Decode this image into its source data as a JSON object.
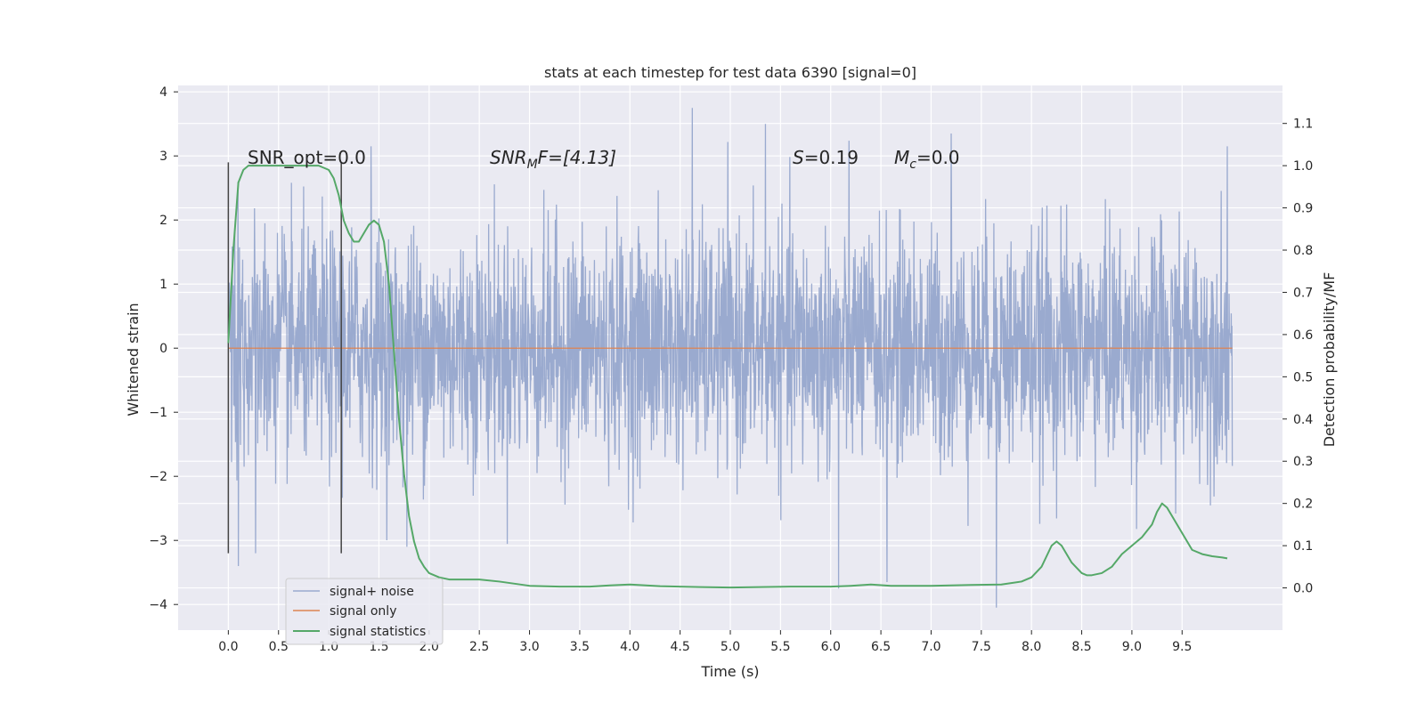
{
  "chart_data": {
    "type": "line",
    "title": "stats at each timestep for test data 6390 [signal=0]",
    "xlabel": "Time (s)",
    "ylabel": "Whitened strain",
    "y2label": "Detection probability/MF",
    "xlim": [
      -0.5,
      10.5
    ],
    "ylim": [
      -4.4,
      4.1
    ],
    "y2lim": [
      -0.1,
      1.19
    ],
    "x_ticks": [
      "0.0",
      "0.5",
      "1.0",
      "1.5",
      "2.0",
      "2.5",
      "3.0",
      "3.5",
      "4.0",
      "4.5",
      "5.0",
      "5.5",
      "6.0",
      "6.5",
      "7.0",
      "7.5",
      "8.0",
      "8.5",
      "9.0",
      "9.5"
    ],
    "y_ticks": [
      "4",
      "3",
      "2",
      "1",
      "0",
      "−1",
      "−2",
      "−3",
      "−4"
    ],
    "y2_ticks": [
      "1.1",
      "1.0",
      "0.9",
      "0.8",
      "0.7",
      "0.6",
      "0.5",
      "0.4",
      "0.3",
      "0.2",
      "0.1",
      "0.0"
    ],
    "grid": true,
    "legend_position": "lower-left",
    "annotations": {
      "snr_opt": "SNR_opt=0.0",
      "snr_mf_main": "SNR",
      "snr_mf_sub": "M",
      "snr_mf_rest": "F=[4.13]",
      "s_main": "S",
      "s_rest": "=0.19",
      "mc_main": "M",
      "mc_sub": "c",
      "mc_rest": "=0.0"
    },
    "vertical_markers": [
      0.0,
      1.125
    ],
    "series": [
      {
        "name": "signal+ noise",
        "color": "#9aaacf",
        "x_range": [
          0.0,
          10.0
        ],
        "envelope_typical": [
          -1.4,
          1.4
        ],
        "peaks": [
          {
            "x": 0.1,
            "y": -3.4
          },
          {
            "x": 0.27,
            "y": -3.2
          },
          {
            "x": 1.42,
            "y": 3.15
          },
          {
            "x": 1.78,
            "y": -3.1
          },
          {
            "x": 4.62,
            "y": 3.75
          },
          {
            "x": 5.35,
            "y": 3.5
          },
          {
            "x": 6.08,
            "y": -3.75
          },
          {
            "x": 6.56,
            "y": -3.65
          },
          {
            "x": 7.2,
            "y": 3.35
          },
          {
            "x": 7.65,
            "y": -4.05
          },
          {
            "x": 9.95,
            "y": 3.15
          }
        ]
      },
      {
        "name": "signal only",
        "color": "#dd8452",
        "x": [
          0.0,
          10.0
        ],
        "y": [
          0.0,
          0.0
        ]
      },
      {
        "name": "signal statistics",
        "color": "#55a868",
        "x": [
          0.0,
          0.05,
          0.1,
          0.15,
          0.2,
          0.3,
          0.5,
          0.7,
          0.9,
          1.0,
          1.05,
          1.1,
          1.15,
          1.2,
          1.25,
          1.3,
          1.35,
          1.4,
          1.45,
          1.5,
          1.55,
          1.6,
          1.65,
          1.7,
          1.75,
          1.8,
          1.85,
          1.9,
          1.95,
          2.0,
          2.1,
          2.2,
          2.3,
          2.5,
          2.7,
          3.0,
          3.3,
          3.6,
          3.8,
          4.0,
          4.3,
          4.7,
          5.0,
          5.3,
          5.6,
          6.0,
          6.2,
          6.4,
          6.6,
          7.0,
          7.4,
          7.7,
          7.9,
          8.0,
          8.1,
          8.2,
          8.25,
          8.3,
          8.4,
          8.5,
          8.55,
          8.6,
          8.7,
          8.8,
          8.9,
          9.0,
          9.1,
          9.2,
          9.25,
          9.3,
          9.35,
          9.4,
          9.5,
          9.6,
          9.7,
          9.8,
          9.9,
          9.95
        ],
        "y": [
          0.58,
          0.8,
          0.96,
          0.99,
          1.0,
          1.0,
          1.0,
          1.0,
          1.0,
          0.99,
          0.97,
          0.93,
          0.87,
          0.84,
          0.82,
          0.82,
          0.84,
          0.86,
          0.87,
          0.86,
          0.82,
          0.72,
          0.56,
          0.4,
          0.27,
          0.17,
          0.11,
          0.07,
          0.05,
          0.035,
          0.025,
          0.02,
          0.02,
          0.02,
          0.015,
          0.005,
          0.003,
          0.003,
          0.006,
          0.008,
          0.004,
          0.002,
          0.001,
          0.002,
          0.003,
          0.003,
          0.005,
          0.008,
          0.005,
          0.005,
          0.007,
          0.008,
          0.015,
          0.025,
          0.05,
          0.1,
          0.11,
          0.1,
          0.06,
          0.035,
          0.03,
          0.03,
          0.035,
          0.05,
          0.08,
          0.1,
          0.12,
          0.15,
          0.18,
          0.2,
          0.19,
          0.17,
          0.13,
          0.09,
          0.08,
          0.075,
          0.072,
          0.07
        ]
      }
    ]
  }
}
